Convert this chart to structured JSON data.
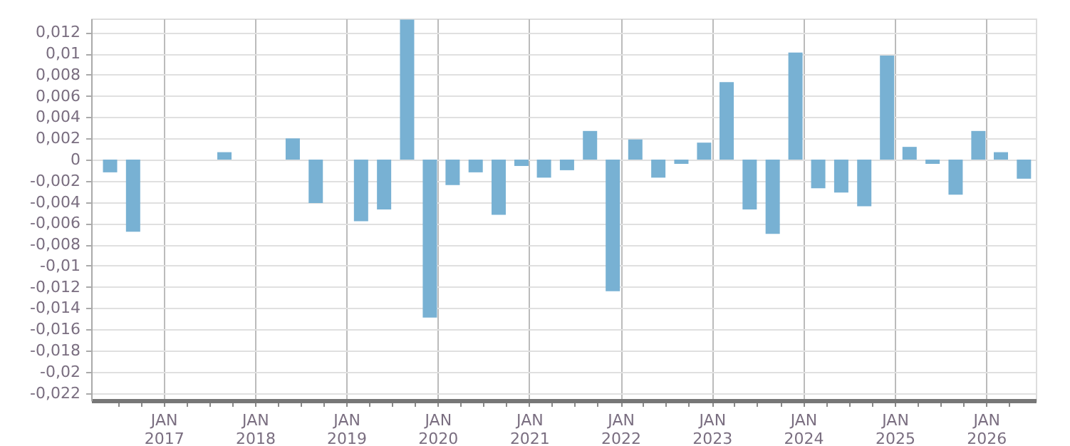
{
  "chart_data": {
    "type": "bar",
    "x": [
      "2016-06",
      "2016-09",
      "2017-09",
      "2018-06",
      "2018-09",
      "2019-03",
      "2019-06",
      "2019-09",
      "2019-12",
      "2020-03",
      "2020-06",
      "2020-09",
      "2020-12",
      "2021-03",
      "2021-06",
      "2021-09",
      "2021-12",
      "2022-03",
      "2022-06",
      "2022-09",
      "2022-12",
      "2023-03",
      "2023-06",
      "2023-09",
      "2023-12",
      "2024-03",
      "2024-06",
      "2024-09",
      "2024-12",
      "2025-03",
      "2025-06",
      "2025-09",
      "2025-12",
      "2026-03",
      "2026-06"
    ],
    "values": [
      -0.0012,
      -0.0068,
      0.0007,
      0.002,
      -0.0041,
      -0.0058,
      -0.0047,
      0.0132,
      -0.0149,
      -0.0024,
      -0.0012,
      -0.0052,
      -0.0006,
      -0.0017,
      -0.001,
      0.0027,
      -0.0124,
      0.0019,
      -0.0017,
      -0.0004,
      0.0016,
      0.0073,
      -0.0047,
      -0.007,
      0.0101,
      -0.0027,
      -0.0031,
      -0.0044,
      0.0098,
      0.0012,
      -0.0004,
      -0.0033,
      0.0027,
      0.0007,
      -0.0018
    ],
    "color": "#78b1d3",
    "xlim": [
      "2016-04-15",
      "2026-06-20"
    ],
    "xticks": [
      {
        "value": "2016-07",
        "label": null
      },
      {
        "value": "2016-10",
        "label": null
      },
      {
        "value": "2017-01",
        "label": "JAN 2017"
      },
      {
        "value": "2017-04",
        "label": null
      },
      {
        "value": "2017-07",
        "label": null
      },
      {
        "value": "2017-10",
        "label": null
      },
      {
        "value": "2018-01",
        "label": "JAN 2018"
      },
      {
        "value": "2018-04",
        "label": null
      },
      {
        "value": "2018-07",
        "label": null
      },
      {
        "value": "2018-10",
        "label": null
      },
      {
        "value": "2019-01",
        "label": "JAN 2019"
      },
      {
        "value": "2019-04",
        "label": null
      },
      {
        "value": "2019-07",
        "label": null
      },
      {
        "value": "2019-10",
        "label": null
      },
      {
        "value": "2020-01",
        "label": "JAN 2020"
      },
      {
        "value": "2020-04",
        "label": null
      },
      {
        "value": "2020-07",
        "label": null
      },
      {
        "value": "2020-10",
        "label": null
      },
      {
        "value": "2021-01",
        "label": "JAN 2021"
      },
      {
        "value": "2021-04",
        "label": null
      },
      {
        "value": "2021-07",
        "label": null
      },
      {
        "value": "2021-10",
        "label": null
      },
      {
        "value": "2022-01",
        "label": "JAN 2022"
      },
      {
        "value": "2022-04",
        "label": null
      },
      {
        "value": "2022-07",
        "label": null
      },
      {
        "value": "2022-10",
        "label": null
      },
      {
        "value": "2023-01",
        "label": "JAN 2023"
      },
      {
        "value": "2023-04",
        "label": null
      },
      {
        "value": "2023-07",
        "label": null
      },
      {
        "value": "2023-10",
        "label": null
      },
      {
        "value": "2024-01",
        "label": "JAN 2024"
      },
      {
        "value": "2024-04",
        "label": null
      },
      {
        "value": "2024-07",
        "label": null
      },
      {
        "value": "2024-10",
        "label": null
      },
      {
        "value": "2025-01",
        "label": "JAN 2025"
      },
      {
        "value": "2025-04",
        "label": null
      },
      {
        "value": "2025-07",
        "label": null
      },
      {
        "value": "2025-10",
        "label": null
      },
      {
        "value": "2026-01",
        "label": "JAN 2026"
      },
      {
        "value": "2026-04",
        "label": null
      }
    ],
    "ylim": [
      -0.0227,
      0.0133
    ],
    "yticks": [
      {
        "value": 0.012,
        "label": "0,012"
      },
      {
        "value": 0.01,
        "label": "0,01"
      },
      {
        "value": 0.008,
        "label": "0,008"
      },
      {
        "value": 0.006,
        "label": "0,006"
      },
      {
        "value": 0.004,
        "label": "0,004"
      },
      {
        "value": 0.002,
        "label": "0,002"
      },
      {
        "value": 0,
        "label": "0"
      },
      {
        "value": -0.002,
        "label": "-0,002"
      },
      {
        "value": -0.004,
        "label": "-0,004"
      },
      {
        "value": -0.006,
        "label": "-0,006"
      },
      {
        "value": -0.008,
        "label": "-0,008"
      },
      {
        "value": -0.01,
        "label": "-0,01"
      },
      {
        "value": -0.012,
        "label": "-0,012"
      },
      {
        "value": -0.014,
        "label": "-0,014"
      },
      {
        "value": -0.016,
        "label": "-0,016"
      },
      {
        "value": -0.018,
        "label": "-0,018"
      },
      {
        "value": -0.02,
        "label": "-0,02"
      },
      {
        "value": -0.022,
        "label": "-0,022"
      }
    ],
    "grid": true
  }
}
